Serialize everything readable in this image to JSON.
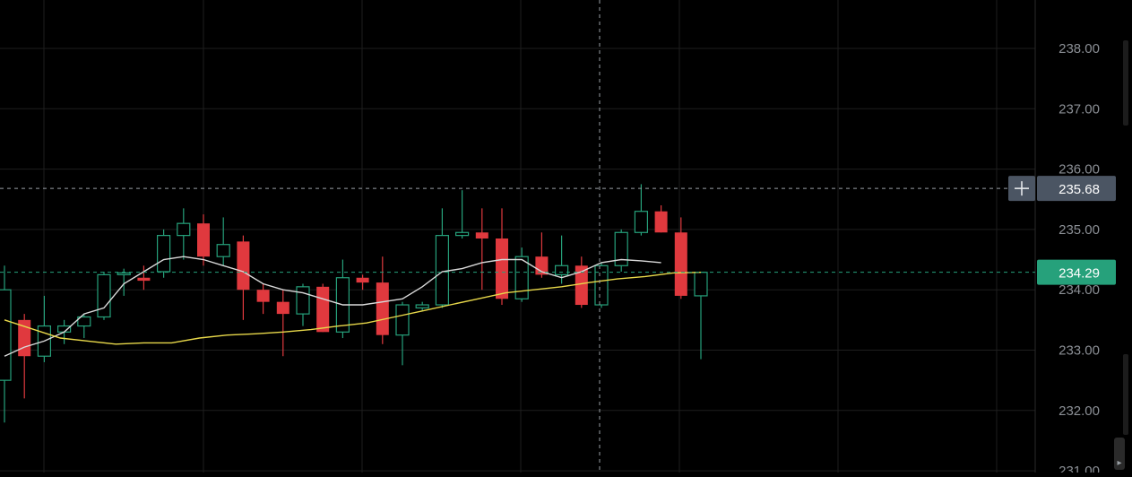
{
  "chart_data": {
    "type": "candlestick",
    "ylim": [
      231.0,
      238.8
    ],
    "y_ticks": [
      "238.00",
      "237.00",
      "236.00",
      "235.00",
      "234.00",
      "233.00",
      "232.00",
      "231.00"
    ],
    "grid": true,
    "crosshair": {
      "price_label": "235.68",
      "price": 235.68
    },
    "last_price": {
      "label": "234.29",
      "value": 234.29,
      "color": "#26a17b"
    },
    "colors": {
      "up": "#26a17b",
      "down": "#e0393e",
      "ma_fast": "#d9d9d9",
      "ma_slow": "#e8d84a",
      "grid": "#1e1e1e"
    },
    "candles": [
      {
        "o": 232.5,
        "h": 234.4,
        "l": 231.8,
        "c": 234.0
      },
      {
        "o": 233.5,
        "h": 233.6,
        "l": 232.2,
        "c": 232.9
      },
      {
        "o": 232.9,
        "h": 233.9,
        "l": 232.8,
        "c": 233.4
      },
      {
        "o": 233.3,
        "h": 233.5,
        "l": 233.1,
        "c": 233.4
      },
      {
        "o": 233.4,
        "h": 233.6,
        "l": 233.2,
        "c": 233.55
      },
      {
        "o": 233.55,
        "h": 234.3,
        "l": 233.5,
        "c": 234.25
      },
      {
        "o": 234.25,
        "h": 234.35,
        "l": 233.9,
        "c": 234.28
      },
      {
        "o": 234.2,
        "h": 234.4,
        "l": 234.0,
        "c": 234.15
      },
      {
        "o": 234.3,
        "h": 235.0,
        "l": 234.2,
        "c": 234.9
      },
      {
        "o": 234.9,
        "h": 235.35,
        "l": 234.5,
        "c": 235.1
      },
      {
        "o": 235.1,
        "h": 235.25,
        "l": 234.4,
        "c": 234.55
      },
      {
        "o": 234.55,
        "h": 235.2,
        "l": 234.4,
        "c": 234.75
      },
      {
        "o": 234.8,
        "h": 234.9,
        "l": 233.5,
        "c": 234.0
      },
      {
        "o": 234.0,
        "h": 234.1,
        "l": 233.6,
        "c": 233.8
      },
      {
        "o": 233.8,
        "h": 234.0,
        "l": 232.9,
        "c": 233.6
      },
      {
        "o": 233.6,
        "h": 234.1,
        "l": 233.4,
        "c": 234.05
      },
      {
        "o": 234.05,
        "h": 234.1,
        "l": 233.3,
        "c": 233.3
      },
      {
        "o": 233.3,
        "h": 234.5,
        "l": 233.2,
        "c": 234.2
      },
      {
        "o": 234.2,
        "h": 234.25,
        "l": 234.0,
        "c": 234.12
      },
      {
        "o": 234.12,
        "h": 234.55,
        "l": 233.1,
        "c": 233.25
      },
      {
        "o": 233.25,
        "h": 233.8,
        "l": 232.75,
        "c": 233.75
      },
      {
        "o": 233.7,
        "h": 233.8,
        "l": 233.65,
        "c": 233.75
      },
      {
        "o": 233.75,
        "h": 235.35,
        "l": 233.7,
        "c": 234.9
      },
      {
        "o": 234.9,
        "h": 235.65,
        "l": 234.85,
        "c": 234.95
      },
      {
        "o": 234.95,
        "h": 235.35,
        "l": 234.0,
        "c": 234.85
      },
      {
        "o": 234.85,
        "h": 235.35,
        "l": 233.75,
        "c": 233.85
      },
      {
        "o": 233.85,
        "h": 234.7,
        "l": 233.8,
        "c": 234.55
      },
      {
        "o": 234.55,
        "h": 234.95,
        "l": 234.2,
        "c": 234.25
      },
      {
        "o": 234.25,
        "h": 234.9,
        "l": 234.1,
        "c": 234.4
      },
      {
        "o": 234.4,
        "h": 234.55,
        "l": 233.7,
        "c": 233.75
      },
      {
        "o": 233.75,
        "h": 234.45,
        "l": 233.7,
        "c": 234.4
      },
      {
        "o": 234.4,
        "h": 235.0,
        "l": 234.3,
        "c": 234.95
      },
      {
        "o": 234.95,
        "h": 235.75,
        "l": 234.9,
        "c": 235.3
      },
      {
        "o": 235.3,
        "h": 235.4,
        "l": 234.95,
        "c": 234.95
      },
      {
        "o": 234.95,
        "h": 235.2,
        "l": 233.85,
        "c": 233.9
      },
      {
        "o": 233.9,
        "h": 234.3,
        "l": 232.85,
        "c": 234.29
      }
    ],
    "ma_fast": [
      232.9,
      233.05,
      233.15,
      233.3,
      233.6,
      233.7,
      234.1,
      234.3,
      234.5,
      234.55,
      234.5,
      234.4,
      234.3,
      234.1,
      234.0,
      233.95,
      233.85,
      233.75,
      233.75,
      233.8,
      233.85,
      234.05,
      234.3,
      234.35,
      234.45,
      234.5,
      234.5,
      234.3,
      234.2,
      234.3,
      234.45,
      234.5,
      234.48,
      234.45
    ],
    "ma_slow": [
      233.5,
      233.35,
      233.2,
      233.15,
      233.1,
      233.12,
      233.12,
      233.2,
      233.25,
      233.27,
      233.3,
      233.34,
      233.4,
      233.45,
      233.55,
      233.65,
      233.75,
      233.85,
      233.95,
      234.0,
      234.05,
      234.12,
      234.18,
      234.22,
      234.28,
      234.29
    ]
  }
}
